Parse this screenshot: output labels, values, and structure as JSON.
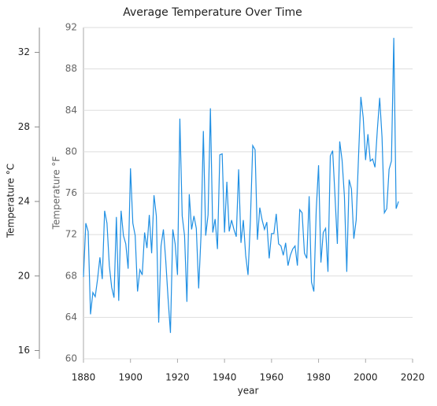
{
  "chart_data": {
    "type": "line",
    "title": "Average Temperature Over Time",
    "x_label": "year",
    "y_label": "Temperature °F",
    "y2_label": "Temperature °C",
    "xlim": [
      1880,
      2020
    ],
    "xticks": [
      1880,
      1900,
      1920,
      1940,
      1960,
      1980,
      2000,
      2020
    ],
    "ylim": [
      60,
      92
    ],
    "yticks": [
      60,
      64,
      68,
      72,
      76,
      80,
      84,
      88,
      92
    ],
    "y2lim": [
      15.556,
      33.333
    ],
    "y2ticks": [
      16,
      20,
      24,
      28,
      32
    ],
    "grid": true,
    "x": [
      1880,
      1881,
      1882,
      1883,
      1884,
      1885,
      1886,
      1887,
      1888,
      1889,
      1890,
      1891,
      1892,
      1893,
      1894,
      1895,
      1896,
      1897,
      1898,
      1899,
      1900,
      1901,
      1902,
      1903,
      1904,
      1905,
      1906,
      1907,
      1908,
      1909,
      1910,
      1911,
      1912,
      1913,
      1914,
      1915,
      1916,
      1917,
      1918,
      1919,
      1920,
      1921,
      1922,
      1923,
      1924,
      1925,
      1926,
      1927,
      1928,
      1929,
      1930,
      1931,
      1932,
      1933,
      1934,
      1935,
      1936,
      1937,
      1938,
      1939,
      1940,
      1941,
      1942,
      1943,
      1944,
      1945,
      1946,
      1947,
      1948,
      1949,
      1950,
      1951,
      1952,
      1953,
      1954,
      1955,
      1956,
      1957,
      1958,
      1959,
      1960,
      1961,
      1962,
      1963,
      1964,
      1965,
      1966,
      1967,
      1968,
      1969,
      1970,
      1971,
      1972,
      1973,
      1974,
      1975,
      1976,
      1977,
      1978,
      1979,
      1980,
      1981,
      1982,
      1983,
      1984,
      1985,
      1986,
      1987,
      1988,
      1989,
      1990,
      1991,
      1992,
      1993,
      1994,
      1995,
      1996,
      1997,
      1998,
      1999,
      2000,
      2001,
      2002,
      2003,
      2004,
      2005,
      2006,
      2007,
      2008,
      2009,
      2010,
      2011,
      2012,
      2013,
      2014
    ],
    "series": [
      {
        "color": "#1f8fe3",
        "values": [
          67.9,
          73.1,
          72.3,
          64.3,
          66.4,
          66.0,
          67.7,
          69.8,
          67.7,
          74.3,
          73.1,
          69.0,
          66.9,
          65.9,
          73.7,
          65.6,
          74.3,
          71.9,
          71.1,
          68.7,
          78.4,
          73.1,
          71.9,
          66.5,
          68.6,
          68.1,
          72.2,
          70.7,
          73.9,
          70.2,
          75.8,
          73.8,
          63.5,
          70.9,
          72.5,
          69.5,
          65.8,
          62.5,
          72.5,
          71.1,
          68.1,
          83.2,
          73.8,
          71.9,
          65.5,
          75.9,
          72.5,
          73.8,
          72.6,
          66.8,
          71.9,
          82.0,
          71.9,
          73.9,
          84.2,
          72.2,
          73.5,
          70.6,
          79.7,
          79.8,
          72.2,
          77.1,
          72.3,
          73.4,
          72.5,
          71.8,
          78.3,
          71.2,
          73.4,
          70.0,
          68.1,
          73.3,
          80.6,
          80.2,
          71.5,
          74.6,
          73.4,
          72.5,
          73.2,
          69.7,
          72.1,
          72.1,
          74.0,
          71.1,
          70.9,
          70.0,
          71.2,
          69.0,
          70.0,
          70.6,
          70.9,
          69.0,
          74.4,
          74.1,
          70.2,
          69.7,
          75.7,
          67.4,
          66.5,
          74.3,
          78.7,
          69.3,
          72.2,
          72.6,
          68.4,
          79.6,
          80.1,
          75.7,
          71.1,
          81.0,
          79.2,
          75.7,
          68.4,
          77.3,
          76.4,
          71.6,
          73.4,
          79.5,
          85.3,
          83.3,
          79.2,
          81.7,
          79.1,
          79.3,
          78.5,
          82.1,
          85.2,
          81.4,
          74.1,
          74.5,
          78.3,
          79.1,
          91.0,
          74.5,
          75.2
        ]
      }
    ]
  }
}
